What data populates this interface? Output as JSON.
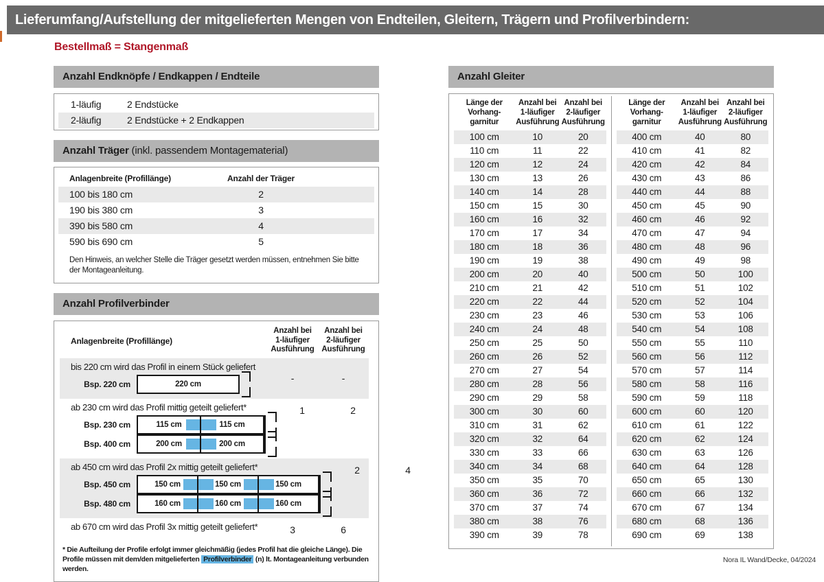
{
  "header": {
    "title": "Lieferumfang/Aufstellung der mitgelieferten Mengen von Endteilen, Gleitern, Trägern und Profilverbindern:",
    "subtitle": "Bestellmaß = Stangenmaß"
  },
  "colors": {
    "title_bar": "#696969",
    "section_bar": "#b3b3b3",
    "row_stripe": "#e9e9e9",
    "accent_red": "#b01728",
    "connector_blue": "#66b5e3"
  },
  "endteile": {
    "title": "Anzahl Endknöpfe / Endkappen / Endteile",
    "rows": [
      {
        "label": "1-läufig",
        "value": "2 Endstücke"
      },
      {
        "label": "2-läufig",
        "value": "2 Endstücke + 2 Endkappen"
      }
    ]
  },
  "traeger": {
    "title_bold": "Anzahl Träger",
    "title_rest": " (inkl. passendem Montagematerial)",
    "col1": "Anlagenbreite (Profillänge)",
    "col2": "Anzahl der Träger",
    "rows": [
      {
        "range": "100 bis 180 cm",
        "count": "2"
      },
      {
        "range": "190 bis 380 cm",
        "count": "3"
      },
      {
        "range": "390 bis 580 cm",
        "count": "4"
      },
      {
        "range": "590 bis 690 cm",
        "count": "5"
      }
    ],
    "note": "Den Hinweis, an welcher Stelle die Träger gesetzt werden müssen, entnehmen Sie bitte der Montageanleitung."
  },
  "profilverbinder": {
    "title": "Anzahl Profilverbinder",
    "col1": "Anlagenbreite (Profillänge)",
    "col2": "Anzahl bei\n1-läufiger\nAusführung",
    "col3": "Anzahl bei\n2-läufiger\nAusführung",
    "rows": [
      {
        "text": "bis 220 cm wird das Profil in einem Stück geliefert",
        "val1": "-",
        "val2": "-",
        "examples": [
          {
            "label": "Bsp. 220 cm",
            "segments": [
              "220 cm"
            ]
          }
        ]
      },
      {
        "text": "ab 230 cm wird das Profil mittig geteilt geliefert*",
        "val1": "1",
        "val2": "2",
        "examples": [
          {
            "label": "Bsp. 230 cm",
            "segments": [
              "115 cm",
              "115 cm"
            ]
          },
          {
            "label": "Bsp. 400 cm",
            "segments": [
              "200 cm",
              "200 cm"
            ]
          }
        ]
      },
      {
        "text": "ab 450 cm wird das Profil 2x mittig geteilt geliefert*",
        "val1": "2",
        "val2": "4",
        "examples": [
          {
            "label": "Bsp. 450 cm",
            "segments": [
              "150 cm",
              "150 cm",
              "150 cm"
            ]
          },
          {
            "label": "Bsp. 480 cm",
            "segments": [
              "160 cm",
              "160 cm",
              "160 cm"
            ]
          }
        ]
      },
      {
        "text": "ab 670 cm wird das Profil 3x mittig geteilt geliefert*",
        "val1": "3",
        "val2": "6",
        "examples": []
      }
    ],
    "footnote_pre": "* Die Aufteilung der Profile erfolgt immer gleichmäßig (jedes Profil hat die gleiche Länge). Die Profile müssen mit dem/den mitgelieferten ",
    "footnote_highlight": "Profilverbinder",
    "footnote_post": " (n) lt. Montageanleitung verbunden werden."
  },
  "gleiter": {
    "title": "Anzahl Gleiter",
    "headers": [
      "Länge der\nVorhang-\ngarnitur",
      "Anzahl bei\n1-läufiger\nAusführung",
      "Anzahl bei\n2-läufiger\nAusführung"
    ],
    "left": [
      [
        "100 cm",
        "10",
        "20"
      ],
      [
        "110 cm",
        "11",
        "22"
      ],
      [
        "120 cm",
        "12",
        "24"
      ],
      [
        "130 cm",
        "13",
        "26"
      ],
      [
        "140 cm",
        "14",
        "28"
      ],
      [
        "150 cm",
        "15",
        "30"
      ],
      [
        "160 cm",
        "16",
        "32"
      ],
      [
        "170 cm",
        "17",
        "34"
      ],
      [
        "180 cm",
        "18",
        "36"
      ],
      [
        "190 cm",
        "19",
        "38"
      ],
      [
        "200 cm",
        "20",
        "40"
      ],
      [
        "210 cm",
        "21",
        "42"
      ],
      [
        "220 cm",
        "22",
        "44"
      ],
      [
        "230 cm",
        "23",
        "46"
      ],
      [
        "240 cm",
        "24",
        "48"
      ],
      [
        "250 cm",
        "25",
        "50"
      ],
      [
        "260 cm",
        "26",
        "52"
      ],
      [
        "270 cm",
        "27",
        "54"
      ],
      [
        "280 cm",
        "28",
        "56"
      ],
      [
        "290 cm",
        "29",
        "58"
      ],
      [
        "300 cm",
        "30",
        "60"
      ],
      [
        "310 cm",
        "31",
        "62"
      ],
      [
        "320 cm",
        "32",
        "64"
      ],
      [
        "330 cm",
        "33",
        "66"
      ],
      [
        "340 cm",
        "34",
        "68"
      ],
      [
        "350 cm",
        "35",
        "70"
      ],
      [
        "360 cm",
        "36",
        "72"
      ],
      [
        "370 cm",
        "37",
        "74"
      ],
      [
        "380 cm",
        "38",
        "76"
      ],
      [
        "390 cm",
        "39",
        "78"
      ]
    ],
    "right": [
      [
        "400 cm",
        "40",
        "80"
      ],
      [
        "410 cm",
        "41",
        "82"
      ],
      [
        "420 cm",
        "42",
        "84"
      ],
      [
        "430 cm",
        "43",
        "86"
      ],
      [
        "440 cm",
        "44",
        "88"
      ],
      [
        "450 cm",
        "45",
        "90"
      ],
      [
        "460 cm",
        "46",
        "92"
      ],
      [
        "470 cm",
        "47",
        "94"
      ],
      [
        "480 cm",
        "48",
        "96"
      ],
      [
        "490 cm",
        "49",
        "98"
      ],
      [
        "500 cm",
        "50",
        "100"
      ],
      [
        "510 cm",
        "51",
        "102"
      ],
      [
        "520 cm",
        "52",
        "104"
      ],
      [
        "530 cm",
        "53",
        "106"
      ],
      [
        "540 cm",
        "54",
        "108"
      ],
      [
        "550 cm",
        "55",
        "110"
      ],
      [
        "560 cm",
        "56",
        "112"
      ],
      [
        "570 cm",
        "57",
        "114"
      ],
      [
        "580 cm",
        "58",
        "116"
      ],
      [
        "590 cm",
        "59",
        "118"
      ],
      [
        "600 cm",
        "60",
        "120"
      ],
      [
        "610 cm",
        "61",
        "122"
      ],
      [
        "620 cm",
        "62",
        "124"
      ],
      [
        "630 cm",
        "63",
        "126"
      ],
      [
        "640 cm",
        "64",
        "128"
      ],
      [
        "650 cm",
        "65",
        "130"
      ],
      [
        "660 cm",
        "66",
        "132"
      ],
      [
        "670 cm",
        "67",
        "134"
      ],
      [
        "680 cm",
        "68",
        "136"
      ],
      [
        "690 cm",
        "69",
        "138"
      ]
    ]
  },
  "footer": {
    "text": "Nora IL Wand/Decke, 04/2024"
  }
}
